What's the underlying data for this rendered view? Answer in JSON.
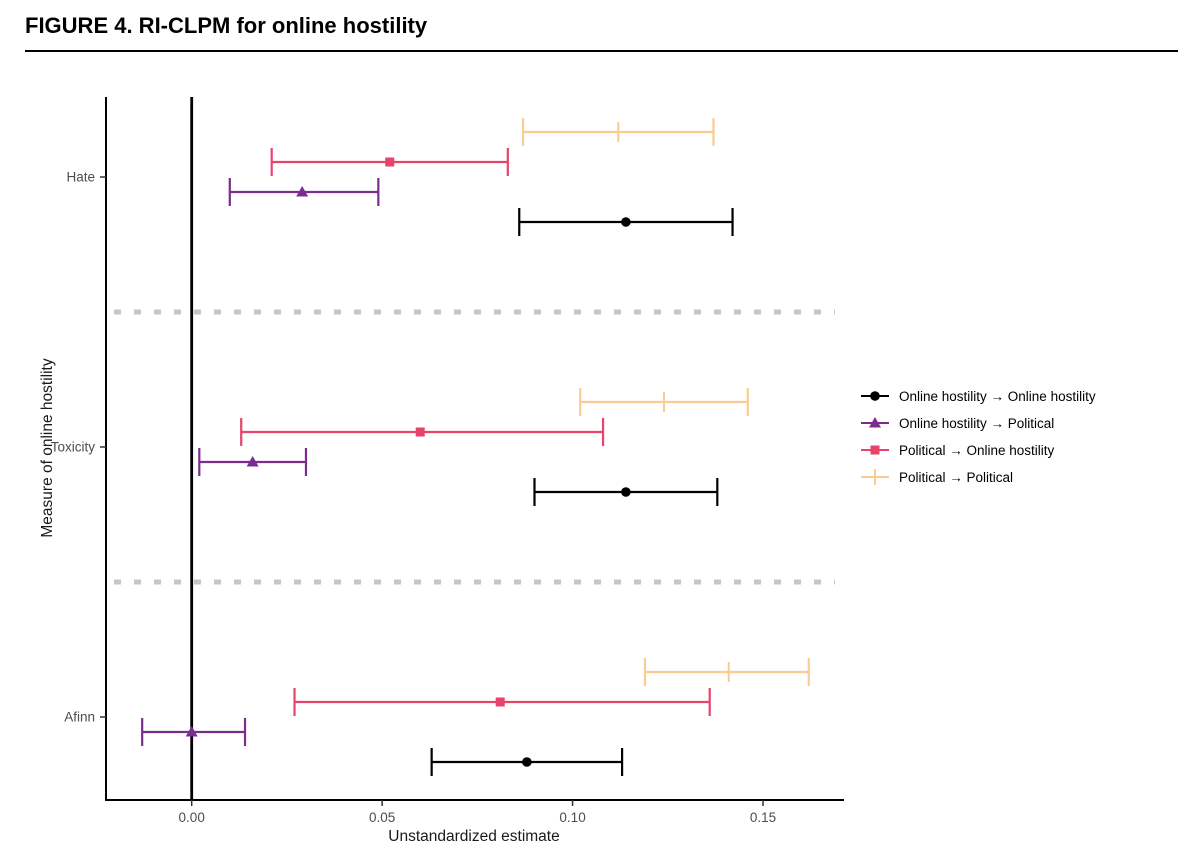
{
  "page": {
    "title": "FIGURE 4. RI-CLPM for online hostility"
  },
  "chart_data": {
    "type": "scatter",
    "subtype": "forest-plot-error-bars",
    "title": "FIGURE 4. RI-CLPM for online hostility",
    "xlabel": "Unstandardized estimate",
    "ylabel": "Measure of online hostility",
    "categories": [
      "Hate",
      "Toxicity",
      "Afinn"
    ],
    "xlim": [
      -0.0225,
      0.171
    ],
    "xticks": [
      {
        "value": 0,
        "label": "0.00"
      },
      {
        "value": 0.05,
        "label": "0.05"
      },
      {
        "value": 0.1,
        "label": "0.10"
      },
      {
        "value": 0.15,
        "label": "0.15"
      }
    ],
    "reference_line_x": 0,
    "grid": false,
    "legend_position": "right",
    "row_order_top_to_bottom": [
      "Political → Political",
      "Political → Online hostility",
      "Online hostility → Political",
      "Online hostility → Online hostility"
    ],
    "separator_style": {
      "color": "#c6c6c6",
      "dash": [
        7,
        13
      ],
      "width": 5
    },
    "axis_text_color": "#4d4d4d",
    "axis_title_color": "#1a1a1a",
    "series": [
      {
        "name": "Online hostility → Online hostility",
        "marker": "circle",
        "color": "#000000",
        "estimates": [
          0.114,
          0.114,
          0.088
        ],
        "ci_low": [
          0.086,
          0.09,
          0.063
        ],
        "ci_high": [
          0.142,
          0.138,
          0.113
        ]
      },
      {
        "name": "Online hostility → Political",
        "marker": "triangle",
        "color": "#7b2d8e",
        "estimates": [
          0.029,
          0.016,
          0.0
        ],
        "ci_low": [
          0.01,
          0.002,
          -0.013
        ],
        "ci_high": [
          0.049,
          0.03,
          0.014
        ]
      },
      {
        "name": "Political → Online hostility",
        "marker": "square",
        "color": "#e8436b",
        "estimates": [
          0.052,
          0.06,
          0.081
        ],
        "ci_low": [
          0.021,
          0.013,
          0.027
        ],
        "ci_high": [
          0.083,
          0.108,
          0.136
        ]
      },
      {
        "name": "Political → Political",
        "marker": "plus",
        "color": "#facc92",
        "estimates": [
          0.112,
          0.124,
          0.141
        ],
        "ci_low": [
          0.087,
          0.102,
          0.119
        ],
        "ci_high": [
          0.137,
          0.146,
          0.162
        ]
      }
    ]
  }
}
